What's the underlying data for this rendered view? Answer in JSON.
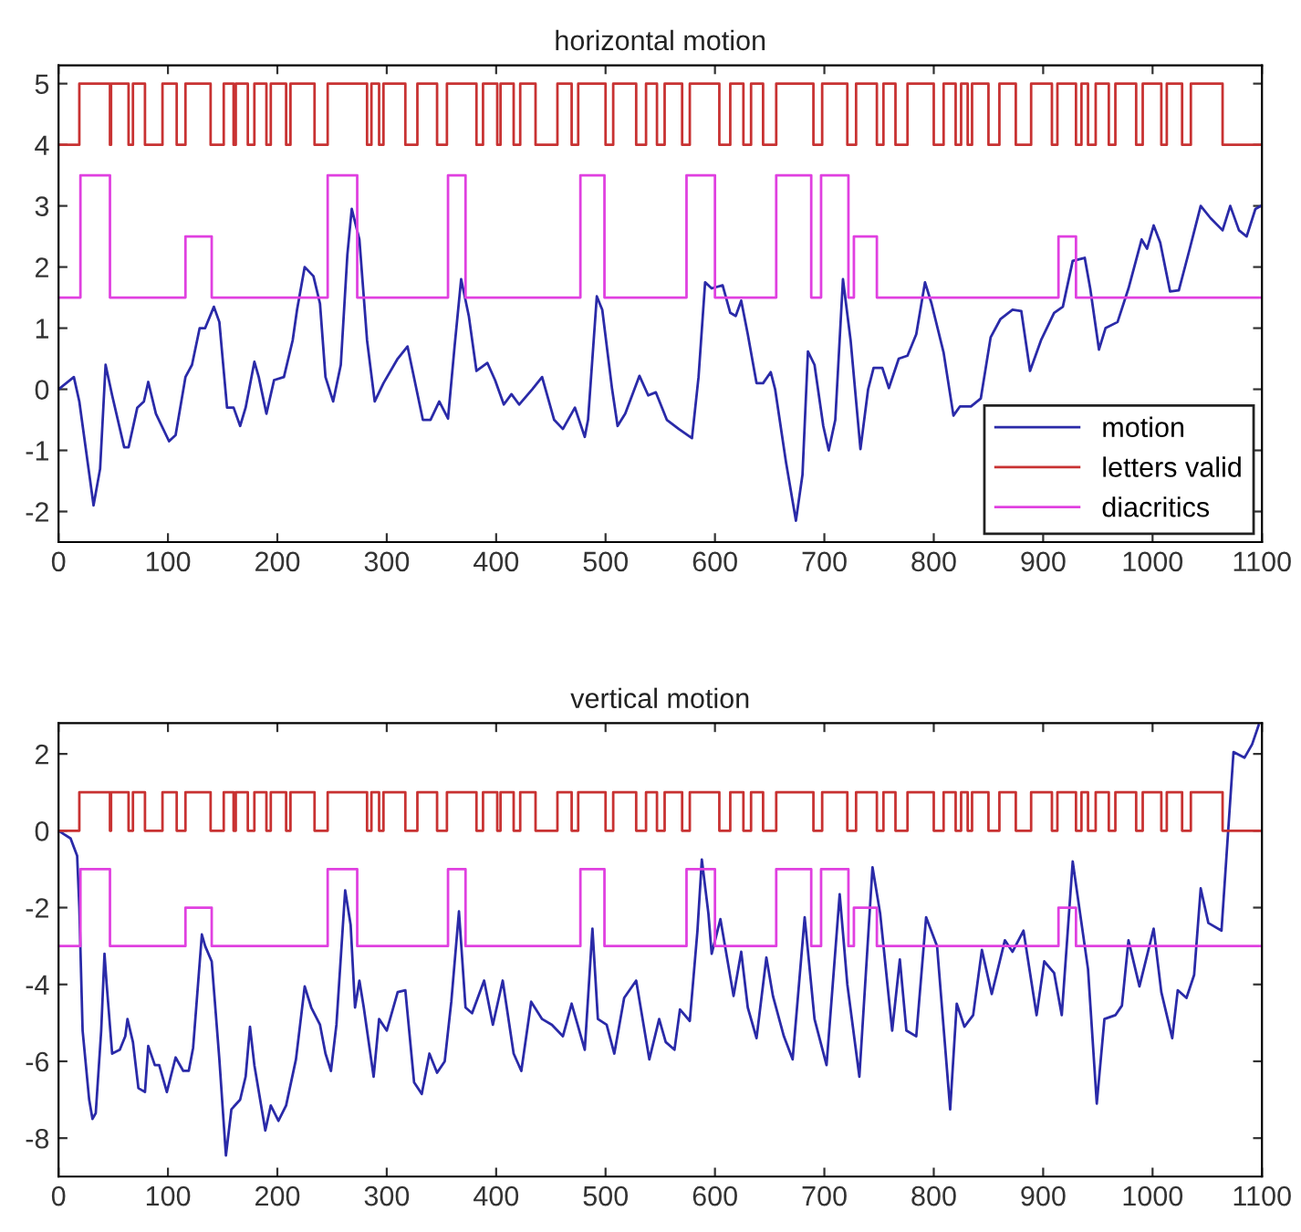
{
  "chart_data": [
    {
      "type": "line",
      "title": "horizontal motion",
      "xlim": [
        0,
        1100
      ],
      "xticks": [
        0,
        100,
        200,
        300,
        400,
        500,
        600,
        700,
        800,
        900,
        1000,
        1100
      ],
      "ylim": [
        -2.5,
        5.3
      ],
      "yticks": [
        -2,
        -1,
        0,
        1,
        2,
        3,
        4,
        5
      ],
      "grid": false,
      "legend": "bottom right",
      "series": [
        {
          "name": "motion",
          "color": "#2a2aa8",
          "x": [
            0,
            14,
            19,
            32,
            38,
            43,
            49,
            60,
            64,
            72,
            78,
            82,
            89,
            101,
            107,
            116,
            122,
            129,
            134,
            142,
            147,
            154,
            160,
            166,
            171,
            179,
            183,
            190,
            197,
            206,
            214,
            218,
            225,
            233,
            239,
            244,
            251,
            258,
            264,
            268,
            275,
            282,
            289,
            297,
            310,
            319,
            333,
            340,
            348,
            356,
            362,
            368,
            375,
            382,
            392,
            399,
            407,
            414,
            421,
            433,
            442,
            453,
            461,
            472,
            481,
            484,
            492,
            497,
            506,
            511,
            518,
            531,
            539,
            546,
            556,
            567,
            579,
            585,
            591,
            597,
            607,
            614,
            619,
            624,
            630,
            638,
            644,
            651,
            655,
            665,
            674,
            680,
            685,
            691,
            699,
            704,
            710,
            717,
            724,
            733,
            740,
            745,
            753,
            759,
            768,
            776,
            784,
            792,
            798,
            809,
            818,
            824,
            834,
            843,
            852,
            861,
            872,
            880,
            888,
            898,
            910,
            918,
            927,
            938,
            943,
            951,
            957,
            968,
            978,
            990,
            995,
            1001,
            1007,
            1016,
            1024,
            1034,
            1044,
            1053,
            1064,
            1071,
            1079,
            1086,
            1094,
            1099
          ],
          "values": [
            0,
            0.2,
            -0.2,
            -1.9,
            -1.3,
            0.4,
            -0.1,
            -0.95,
            -0.95,
            -0.3,
            -0.2,
            0.12,
            -0.4,
            -0.85,
            -0.75,
            0.2,
            0.4,
            1.0,
            1.0,
            1.35,
            1.1,
            -0.3,
            -0.3,
            -0.6,
            -0.3,
            0.45,
            0.2,
            -0.4,
            0.15,
            0.2,
            0.8,
            1.3,
            2.0,
            1.85,
            1.4,
            0.2,
            -0.2,
            0.4,
            2.2,
            2.95,
            2.45,
            0.8,
            -0.2,
            0.1,
            0.5,
            0.7,
            -0.5,
            -0.5,
            -0.2,
            -0.48,
            0.7,
            1.8,
            1.2,
            0.3,
            0.43,
            0.15,
            -0.25,
            -0.08,
            -0.25,
            0,
            0.2,
            -0.5,
            -0.65,
            -0.3,
            -0.78,
            -0.5,
            1.52,
            1.3,
            0,
            -0.6,
            -0.4,
            0.22,
            -0.1,
            -0.05,
            -0.5,
            -0.65,
            -0.8,
            0.2,
            1.75,
            1.65,
            1.7,
            1.25,
            1.2,
            1.45,
            0.9,
            0.1,
            0.1,
            0.28,
            0,
            -1.2,
            -2.15,
            -1.4,
            0.62,
            0.4,
            -0.6,
            -1.0,
            -0.5,
            1.8,
            0.8,
            -0.98,
            0,
            0.35,
            0.35,
            0.02,
            0.5,
            0.55,
            0.9,
            1.75,
            1.4,
            0.6,
            -0.43,
            -0.28,
            -0.28,
            -0.15,
            0.85,
            1.15,
            1.3,
            1.28,
            0.3,
            0.8,
            1.25,
            1.35,
            2.1,
            2.15,
            1.65,
            0.65,
            1.0,
            1.1,
            1.65,
            2.45,
            2.3,
            2.68,
            2.4,
            1.6,
            1.62,
            2.3,
            3.0,
            2.8,
            2.6,
            3.0,
            2.6,
            2.5,
            2.95,
            3.0
          ]
        },
        {
          "name": "letters valid",
          "type": "step",
          "color": "#c83232",
          "x": [
            0,
            19,
            47,
            48,
            64,
            68,
            79,
            95,
            108,
            116,
            139,
            151,
            160,
            162,
            173,
            179,
            190,
            194,
            208,
            212,
            234,
            246,
            282,
            286,
            293,
            297,
            317,
            328,
            346,
            355,
            382,
            388,
            401,
            404,
            416,
            422,
            436,
            456,
            469,
            475,
            500,
            507,
            528,
            537,
            547,
            554,
            570,
            577,
            604,
            614,
            626,
            633,
            644,
            656,
            690,
            698,
            721,
            729,
            748,
            754,
            765,
            776,
            800,
            809,
            820,
            825,
            831,
            835,
            850,
            860,
            875,
            889,
            908,
            913,
            930,
            935,
            941,
            948,
            960,
            966,
            985,
            991,
            1008,
            1013,
            1027,
            1035,
            1064,
            1100
          ],
          "values": [
            4,
            5,
            4,
            5,
            4,
            5,
            4,
            5,
            4,
            5,
            4,
            5,
            4,
            5,
            4,
            5,
            4,
            5,
            4,
            5,
            4,
            5,
            4,
            5,
            4,
            5,
            4,
            5,
            4,
            5,
            4,
            5,
            4,
            5,
            4,
            5,
            4,
            5,
            4,
            5,
            4,
            5,
            4,
            5,
            4,
            5,
            4,
            5,
            4,
            5,
            4,
            5,
            4,
            5,
            4,
            5,
            4,
            5,
            4,
            5,
            4,
            5,
            4,
            5,
            4,
            5,
            4,
            5,
            4,
            5,
            4,
            5,
            4,
            5,
            4,
            5,
            4,
            5,
            4,
            5,
            4,
            5,
            4,
            5,
            4,
            5,
            4,
            4
          ]
        },
        {
          "name": "diacritics",
          "type": "step",
          "color": "#e040e0",
          "x": [
            0,
            20,
            47,
            116,
            140,
            246,
            273,
            356,
            372,
            477,
            499,
            574,
            600,
            656,
            688,
            697,
            722,
            727,
            748,
            914,
            930,
            1100
          ],
          "values": [
            1.5,
            3.5,
            1.5,
            2.5,
            1.5,
            3.5,
            1.5,
            3.5,
            1.5,
            3.5,
            1.5,
            3.5,
            1.5,
            3.5,
            1.5,
            3.5,
            1.5,
            2.5,
            1.5,
            2.5,
            1.5,
            1.5
          ]
        }
      ]
    },
    {
      "type": "line",
      "title": "vertical motion",
      "xlim": [
        0,
        1100
      ],
      "xticks": [
        0,
        100,
        200,
        300,
        400,
        500,
        600,
        700,
        800,
        900,
        1000,
        1100
      ],
      "ylim": [
        -9,
        2.8
      ],
      "yticks": [
        -8,
        -6,
        -4,
        -2,
        0,
        2
      ],
      "grid": false,
      "series": [
        {
          "color": "#2a2aa8",
          "x": [
            0,
            11,
            17,
            19,
            22,
            28,
            31,
            34,
            39,
            42,
            44,
            49,
            56,
            61,
            63,
            68,
            73,
            79,
            82,
            88,
            92,
            99,
            107,
            114,
            119,
            123,
            131,
            134,
            140,
            147,
            153,
            158,
            166,
            171,
            175,
            179,
            189,
            194,
            201,
            208,
            217,
            225,
            231,
            239,
            244,
            249,
            254,
            262,
            267,
            271,
            275,
            279,
            288,
            293,
            300,
            310,
            317,
            325,
            332,
            339,
            346,
            353,
            359,
            366,
            372,
            378,
            389,
            397,
            406,
            416,
            423,
            432,
            442,
            451,
            461,
            469,
            481,
            488,
            493,
            501,
            508,
            517,
            528,
            540,
            549,
            555,
            563,
            568,
            577,
            584,
            588,
            594,
            597,
            605,
            617,
            624,
            630,
            638,
            647,
            653,
            663,
            671,
            682,
            691,
            702,
            714,
            721,
            732,
            744,
            751,
            762,
            769,
            775,
            784,
            793,
            803,
            815,
            821,
            828,
            836,
            844,
            853,
            865,
            872,
            882,
            894,
            901,
            910,
            917,
            927,
            941,
            949,
            956,
            966,
            972,
            978,
            988,
            1001,
            1008,
            1018,
            1023,
            1031,
            1038,
            1044,
            1051,
            1063,
            1069,
            1074,
            1084,
            1091,
            1097
          ],
          "values": [
            0,
            -0.2,
            -0.65,
            -2.0,
            -5.2,
            -7.0,
            -7.5,
            -7.35,
            -5.2,
            -3.2,
            -4.0,
            -5.8,
            -5.7,
            -5.35,
            -4.9,
            -5.5,
            -6.7,
            -6.8,
            -5.6,
            -6.1,
            -6.1,
            -6.8,
            -5.9,
            -6.25,
            -6.25,
            -5.65,
            -2.7,
            -3.0,
            -3.4,
            -5.95,
            -8.45,
            -7.25,
            -7.0,
            -6.4,
            -5.1,
            -6.1,
            -7.8,
            -7.15,
            -7.55,
            -7.15,
            -5.95,
            -4.05,
            -4.6,
            -5.05,
            -5.8,
            -6.25,
            -5.05,
            -1.55,
            -2.45,
            -4.6,
            -3.9,
            -4.6,
            -6.4,
            -4.9,
            -5.2,
            -4.2,
            -4.15,
            -6.55,
            -6.85,
            -5.8,
            -6.3,
            -6.0,
            -4.45,
            -2.1,
            -4.6,
            -4.75,
            -3.9,
            -5.05,
            -3.9,
            -5.8,
            -6.25,
            -4.45,
            -4.9,
            -5.05,
            -5.35,
            -4.5,
            -5.7,
            -2.55,
            -4.9,
            -5.05,
            -5.8,
            -4.35,
            -3.9,
            -5.95,
            -4.9,
            -5.5,
            -5.7,
            -4.65,
            -4.95,
            -2.6,
            -0.75,
            -2.15,
            -3.2,
            -2.3,
            -4.3,
            -3.15,
            -4.6,
            -5.4,
            -3.3,
            -4.3,
            -5.35,
            -5.95,
            -2.25,
            -4.9,
            -6.1,
            -1.65,
            -4.0,
            -6.4,
            -0.95,
            -2.15,
            -5.2,
            -3.35,
            -5.2,
            -5.35,
            -2.25,
            -3.0,
            -7.25,
            -4.5,
            -5.1,
            -4.8,
            -3.1,
            -4.25,
            -2.85,
            -3.15,
            -2.6,
            -4.8,
            -3.4,
            -3.7,
            -4.8,
            -0.8,
            -3.6,
            -7.1,
            -4.9,
            -4.8,
            -4.55,
            -2.85,
            -4.05,
            -2.55,
            -4.2,
            -5.4,
            -4.15,
            -4.35,
            -3.75,
            -1.5,
            -2.4,
            -2.6,
            -0.05,
            2.05,
            1.9,
            2.25,
            2.75
          ]
        },
        {
          "type": "step",
          "color": "#c83232",
          "x": [
            0,
            19,
            47,
            48,
            64,
            68,
            79,
            95,
            108,
            116,
            139,
            151,
            160,
            162,
            173,
            179,
            190,
            194,
            208,
            212,
            234,
            246,
            282,
            286,
            293,
            297,
            317,
            328,
            346,
            355,
            382,
            388,
            401,
            404,
            416,
            422,
            436,
            456,
            469,
            475,
            500,
            507,
            528,
            537,
            547,
            554,
            570,
            577,
            604,
            614,
            626,
            633,
            644,
            656,
            690,
            698,
            721,
            729,
            748,
            754,
            765,
            776,
            800,
            809,
            820,
            825,
            831,
            835,
            850,
            860,
            875,
            889,
            908,
            913,
            930,
            935,
            941,
            948,
            960,
            966,
            985,
            991,
            1008,
            1013,
            1027,
            1035,
            1064,
            1100
          ],
          "values": [
            0,
            1,
            0,
            1,
            0,
            1,
            0,
            1,
            0,
            1,
            0,
            1,
            0,
            1,
            0,
            1,
            0,
            1,
            0,
            1,
            0,
            1,
            0,
            1,
            0,
            1,
            0,
            1,
            0,
            1,
            0,
            1,
            0,
            1,
            0,
            1,
            0,
            1,
            0,
            1,
            0,
            1,
            0,
            1,
            0,
            1,
            0,
            1,
            0,
            1,
            0,
            1,
            0,
            1,
            0,
            1,
            0,
            1,
            0,
            1,
            0,
            1,
            0,
            1,
            0,
            1,
            0,
            1,
            0,
            1,
            0,
            1,
            0,
            1,
            0,
            1,
            0,
            1,
            0,
            1,
            0,
            1,
            0,
            1,
            0,
            1,
            0,
            0
          ]
        },
        {
          "type": "step",
          "color": "#e040e0",
          "x": [
            0,
            20,
            47,
            116,
            140,
            246,
            273,
            356,
            372,
            477,
            499,
            574,
            600,
            656,
            688,
            697,
            722,
            727,
            748,
            914,
            930,
            1100
          ],
          "values": [
            -3,
            -1,
            -3,
            -2,
            -3,
            -1,
            -3,
            -1,
            -3,
            -1,
            -3,
            -1,
            -3,
            -1,
            -3,
            -1,
            -3,
            -2,
            -3,
            -2,
            -3,
            -3
          ]
        }
      ]
    }
  ]
}
